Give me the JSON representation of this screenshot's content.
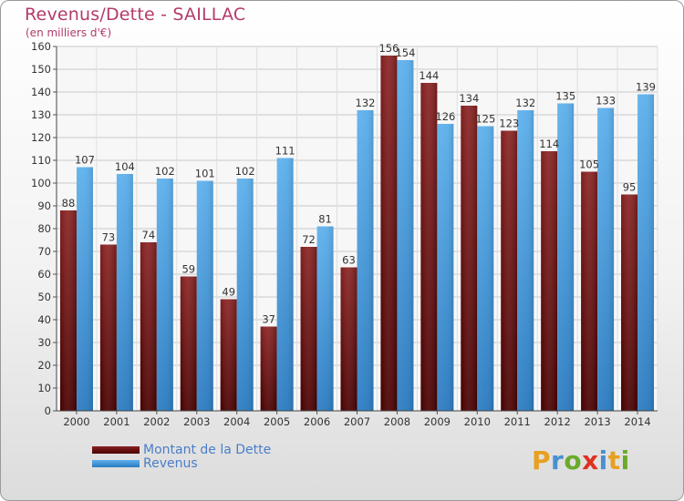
{
  "title": "Revenus/Dette - SAILLAC",
  "subtitle": "(en milliers d'€)",
  "chart_data": {
    "type": "bar",
    "title": "Revenus/Dette - SAILLAC",
    "ylabel": "(en milliers d'€)",
    "xlabel": "",
    "ylim": [
      0,
      160
    ],
    "yticks": [
      0,
      10,
      20,
      30,
      40,
      50,
      60,
      70,
      80,
      90,
      100,
      110,
      120,
      130,
      140,
      150,
      160
    ],
    "grid": true,
    "categories": [
      "2000",
      "2001",
      "2002",
      "2003",
      "2004",
      "2005",
      "2006",
      "2007",
      "2008",
      "2009",
      "2010",
      "2011",
      "2012",
      "2013",
      "2014"
    ],
    "series": [
      {
        "name": "Montant de la Dette",
        "color": "#7a1515",
        "values": [
          88,
          73,
          74,
          59,
          49,
          37,
          72,
          63,
          156,
          144,
          134,
          123,
          114,
          105,
          95
        ]
      },
      {
        "name": "Revenus",
        "color": "#4fa3e0",
        "values": [
          107,
          104,
          102,
          101,
          102,
          111,
          81,
          132,
          154,
          126,
          125,
          132,
          135,
          133,
          139
        ]
      }
    ],
    "legend_position": "bottom-left"
  },
  "legend": {
    "items": [
      {
        "label": "Montant de la Dette",
        "color": "#6b0f0f"
      },
      {
        "label": "Revenus",
        "color": "#4fa3e0"
      }
    ]
  },
  "logo": {
    "letters": [
      "P",
      "r",
      "o",
      "x",
      "i",
      "t",
      "i"
    ],
    "colors": [
      "#e8a020",
      "#4a90d0",
      "#6aaa2a",
      "#e03020",
      "#4a90d0",
      "#e8a020",
      "#6aaa2a"
    ]
  }
}
